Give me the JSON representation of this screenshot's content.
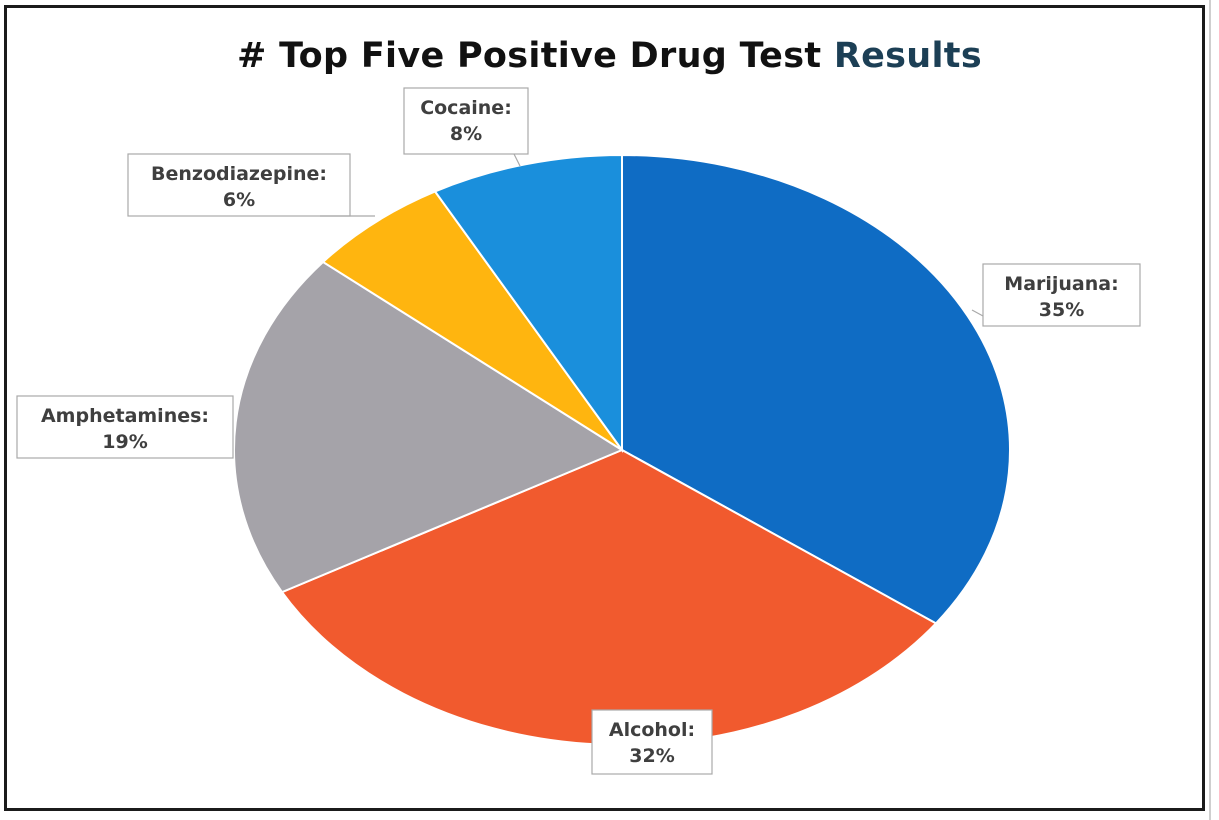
{
  "title": {
    "main": "# Top Five Positive Drug Test ",
    "accent": "Results"
  },
  "chart_data": {
    "type": "pie",
    "title": "# Top Five Positive Drug Test Results",
    "start_angle_deg": 0,
    "direction": "clockwise",
    "slices": [
      {
        "label": "Marijuana",
        "value": 35,
        "display_name": "Marijuana:",
        "display_value": "35%",
        "color": "#0f6cc4"
      },
      {
        "label": "Alcohol",
        "value": 32,
        "display_name": "Alcohol:",
        "display_value": "32%",
        "color": "#f15a2e"
      },
      {
        "label": "Amphetamines",
        "value": 19,
        "display_name": "Amphetamines:",
        "display_value": "19%",
        "color": "#a5a3a9"
      },
      {
        "label": "Benzodiazepine",
        "value": 6,
        "display_name": "Benzodiazepine:",
        "display_value": "6%",
        "color": "#ffb50f"
      },
      {
        "label": "Cocaine",
        "value": 8,
        "display_name": "Cocaine:",
        "display_value": "8%",
        "color": "#1a8fdc"
      }
    ]
  }
}
